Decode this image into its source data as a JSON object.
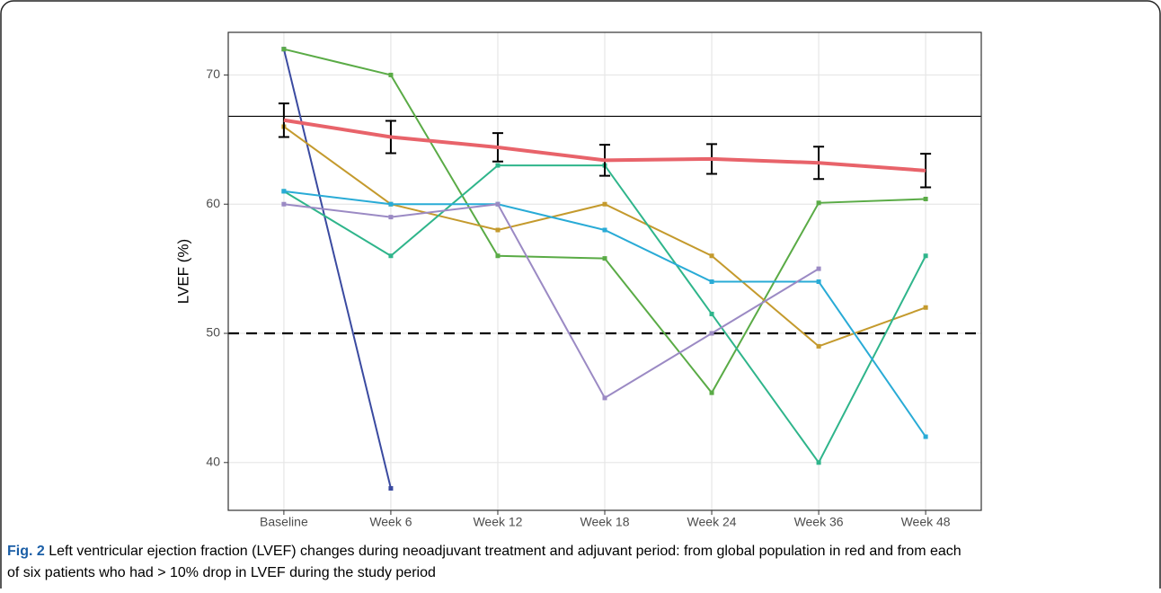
{
  "chart_data": {
    "type": "line",
    "y_label": "LVEF (%)",
    "categories": [
      "Baseline",
      "Week 6",
      "Week 12",
      "Week 18",
      "Week 24",
      "Week 36",
      "Week 48"
    ],
    "ylim": [
      36.3,
      73.3
    ],
    "yticks": [
      40,
      50,
      60,
      70
    ],
    "grid": true,
    "reference_lines": [
      {
        "value": 66.8,
        "style": "solid"
      },
      {
        "value": 50,
        "style": "dashed"
      }
    ],
    "series": [
      {
        "color": "#3a4aa0",
        "values": [
          72,
          38,
          null,
          null,
          null,
          null,
          null
        ]
      },
      {
        "color": "#5aab46",
        "values": [
          72,
          70,
          56,
          55.8,
          45.4,
          60.1,
          60.4
        ]
      },
      {
        "color": "#c49a2d",
        "values": [
          66,
          60,
          58,
          60,
          56,
          49,
          52
        ]
      },
      {
        "color": "#2fb58b",
        "values": [
          61,
          56,
          63,
          63,
          51.5,
          40,
          56
        ]
      },
      {
        "color": "#29abd6",
        "values": [
          61,
          60,
          60,
          58,
          54,
          54,
          42
        ]
      },
      {
        "color": "#9b8ac4",
        "values": [
          60,
          59,
          60,
          45,
          50,
          55,
          null
        ]
      },
      {
        "color": "#e8636a",
        "values": [
          66.5,
          65.2,
          64.4,
          63.4,
          63.5,
          63.2,
          62.6
        ],
        "errors": [
          1.3,
          1.25,
          1.1,
          1.2,
          1.15,
          1.25,
          1.3
        ],
        "width": 4
      }
    ]
  },
  "caption": {
    "label": "Fig. 2",
    "text_line1": "Left ventricular ejection fraction (LVEF) changes during neoadjuvant treatment and adjuvant period: from global population in red and from each",
    "text_line2": "of six patients who had > 10% drop in LVEF during the study period"
  }
}
